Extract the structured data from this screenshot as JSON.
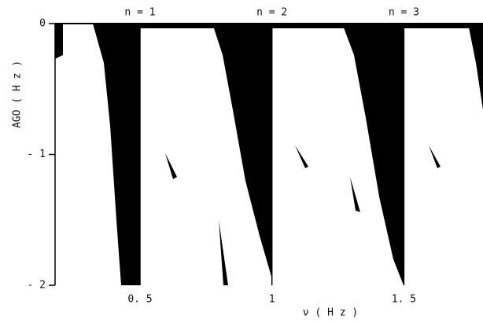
{
  "chart_data": {
    "type": "region",
    "x_label": "ν ( H z )",
    "y_label": "AGO ( H z )",
    "annotations": [
      {
        "text": "n = 1",
        "x": 0.5
      },
      {
        "text": "n = 2",
        "x": 1
      },
      {
        "text": "n = 3",
        "x": 1.5
      }
    ],
    "xlim": [
      0.178,
      1.8
    ],
    "ylim": [
      -2,
      0
    ],
    "xticks": [
      {
        "value": 0.5,
        "label": "0. 5"
      },
      1,
      {
        "value": 1.5,
        "label": "1. 5"
      }
    ],
    "yticks": [
      {
        "value": -2,
        "label": "- 2"
      },
      {
        "value": -1,
        "label": "- 1"
      },
      0
    ],
    "color": "#000000"
  }
}
